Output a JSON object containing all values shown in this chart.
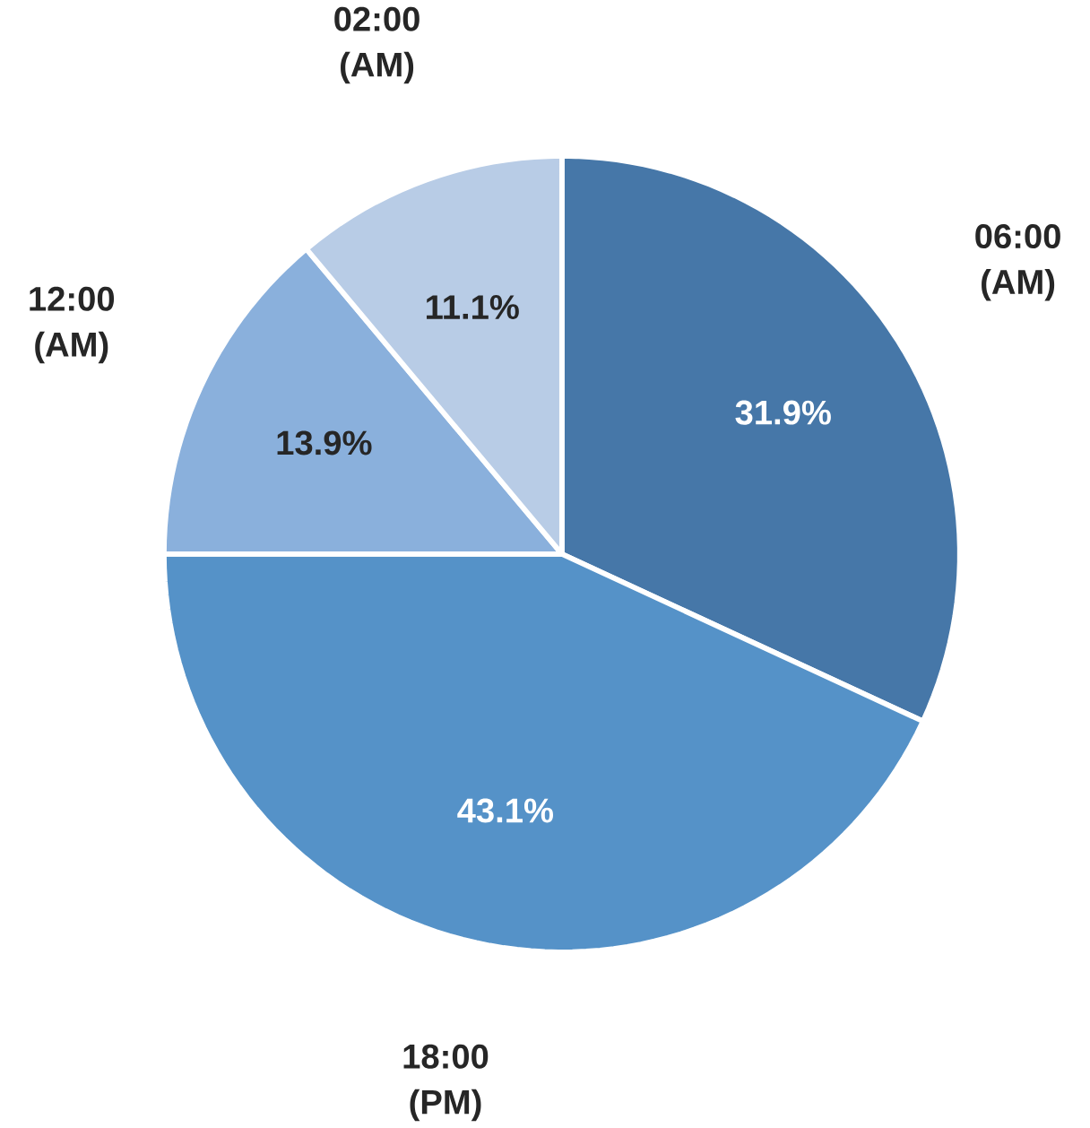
{
  "chart_data": {
    "type": "pie",
    "categories": [
      "06:00 (AM)",
      "18:00 (PM)",
      "12:00 (AM)",
      "02:00 (AM)"
    ],
    "values": [
      31.9,
      43.1,
      13.9,
      11.1
    ],
    "colors": [
      "#4677a8",
      "#5592c8",
      "#8ab0dc",
      "#b8cce6"
    ],
    "value_labels": [
      "31.9%",
      "43.1%",
      "13.9%",
      "11.1%"
    ]
  }
}
